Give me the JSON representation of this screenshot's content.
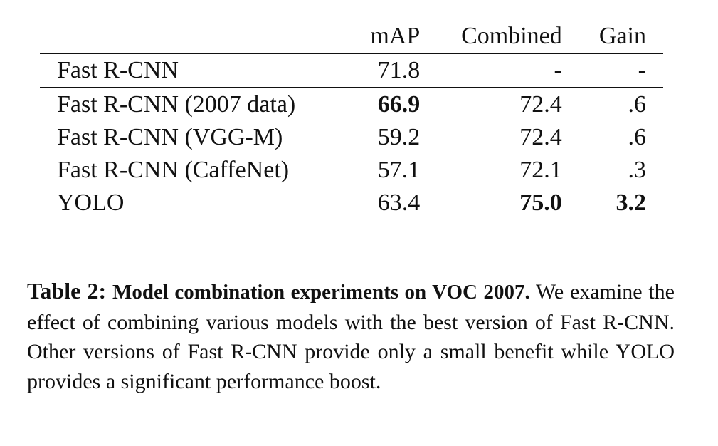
{
  "table": {
    "headers": [
      "",
      "mAP",
      "Combined",
      "Gain"
    ],
    "baseline_row": {
      "model": "Fast R-CNN",
      "map": "71.8",
      "combined": "-",
      "gain": "-"
    },
    "rows": [
      {
        "model": "Fast R-CNN (2007 data)",
        "map": "66.9",
        "combined": "72.4",
        "gain": ".6"
      },
      {
        "model": "Fast R-CNN (VGG-M)",
        "map": "59.2",
        "combined": "72.4",
        "gain": ".6"
      },
      {
        "model": "Fast R-CNN (CaffeNet)",
        "map": "57.1",
        "combined": "72.1",
        "gain": ".3"
      },
      {
        "model": "YOLO",
        "map": "63.4",
        "combined": "75.0",
        "gain": "3.2"
      }
    ]
  },
  "caption": {
    "label": "Table 2:",
    "title": "Model combination experiments on VOC 2007.",
    "body": "We examine the effect of combining various models with the best version of Fast R-CNN. Other versions of Fast R-CNN provide only a small benefit while YOLO provides a significant performance boost."
  }
}
